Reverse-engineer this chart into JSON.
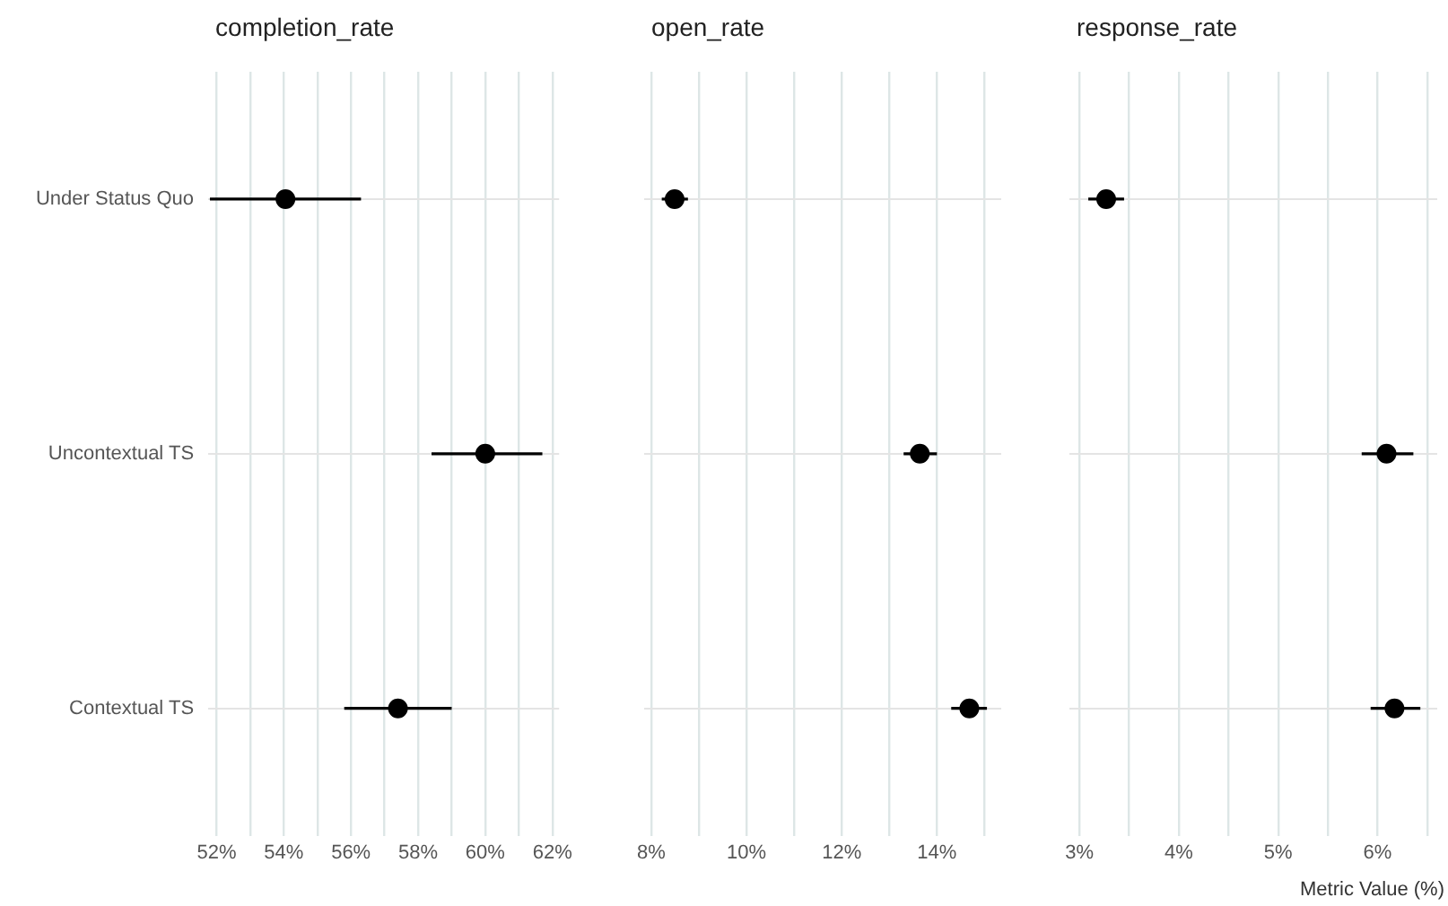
{
  "chart_data": [
    {
      "type": "scatter",
      "orientation": "horizontal",
      "title": "completion_rate",
      "categories": [
        "Under Status Quo",
        "Uncontextual TS",
        "Contextual TS"
      ],
      "values": [
        54.05,
        60.0,
        57.4
      ],
      "errors": [
        [
          51.8,
          56.3
        ],
        [
          58.4,
          61.7
        ],
        [
          55.8,
          59.0
        ]
      ],
      "color": "#000000",
      "marker": "circle",
      "xlim": [
        51.75,
        62.2
      ],
      "xticks": [
        {
          "value": 52,
          "label": "52%"
        },
        {
          "value": 53,
          "label": null
        },
        {
          "value": 54,
          "label": "54%"
        },
        {
          "value": 55,
          "label": null
        },
        {
          "value": 56,
          "label": "56%"
        },
        {
          "value": 57,
          "label": null
        },
        {
          "value": 58,
          "label": "58%"
        },
        {
          "value": 59,
          "label": null
        },
        {
          "value": 60,
          "label": "60%"
        },
        {
          "value": 61,
          "label": null
        },
        {
          "value": 62,
          "label": "62%"
        }
      ],
      "grid": true
    },
    {
      "type": "scatter",
      "orientation": "horizontal",
      "title": "open_rate",
      "categories": [
        null,
        null,
        null
      ],
      "values": [
        8.49,
        13.64,
        14.68
      ],
      "errors": [
        [
          8.22,
          8.77
        ],
        [
          13.3,
          14.0
        ],
        [
          14.3,
          15.05
        ]
      ],
      "color": "#000000",
      "marker": "circle",
      "xlim": [
        7.85,
        15.35
      ],
      "xticks": [
        {
          "value": 8,
          "label": "8%"
        },
        {
          "value": 9,
          "label": null
        },
        {
          "value": 10,
          "label": "10%"
        },
        {
          "value": 11,
          "label": null
        },
        {
          "value": 12,
          "label": "12%"
        },
        {
          "value": 13,
          "label": null
        },
        {
          "value": 14,
          "label": "14%"
        },
        {
          "value": 15,
          "label": null
        }
      ],
      "grid": true,
      "tick_labels": "x"
    },
    {
      "type": "scatter",
      "orientation": "horizontal",
      "title": "response_rate",
      "xlabel": "Metric Value (%)",
      "categories": [
        null,
        null,
        null
      ],
      "values": [
        3.27,
        6.09,
        6.17
      ],
      "errors": [
        [
          3.09,
          3.45
        ],
        [
          5.84,
          6.36
        ],
        [
          5.93,
          6.43
        ]
      ],
      "color": "#000000",
      "marker": "circle",
      "xlim": [
        2.9,
        6.6
      ],
      "xticks": [
        {
          "value": 3,
          "label": "3%"
        },
        {
          "value": 3.5,
          "label": null
        },
        {
          "value": 4,
          "label": "4%"
        },
        {
          "value": 4.5,
          "label": null
        },
        {
          "value": 5,
          "label": "5%"
        },
        {
          "value": 5.5,
          "label": null
        },
        {
          "value": 6,
          "label": "6%"
        },
        {
          "value": 6.5,
          "label": null
        }
      ],
      "grid": true,
      "tick_labels": "x"
    }
  ]
}
